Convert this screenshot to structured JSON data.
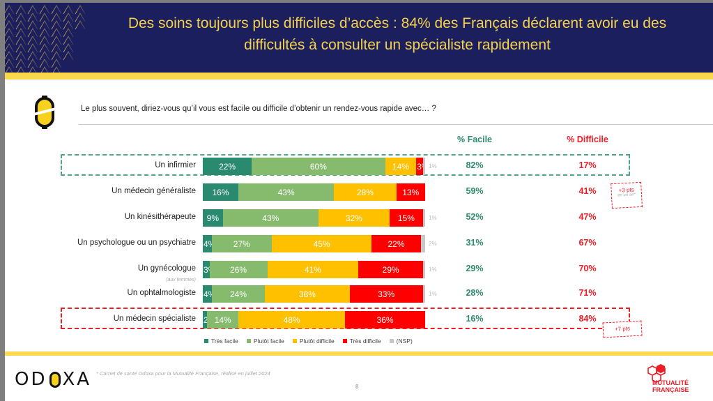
{
  "header": {
    "title_line1": "Des soins toujours plus difficiles d’accès : 84% des Français déclarent avoir eu des",
    "title_line2": "difficultés à consulter un spécialiste rapidement"
  },
  "question": "Le plus souvent, diriez-vous qu’il vous est facile ou difficile d’obtenir un rendez-vous rapide avec… ?",
  "columns": {
    "facile": "% Facile",
    "difficile": "% Difficile"
  },
  "colors": {
    "tres_facile": "#2a8a70",
    "plutot_facile": "#86bb6e",
    "plutot_difficile": "#ffc000",
    "tres_difficile": "#ff0000",
    "nsp": "#c8c8c8",
    "facile_text": "#2e8b6e",
    "difficile_text": "#ee1c25",
    "header_bg": "#1b1f5e",
    "header_text": "#f5d14a",
    "band": "#f9d84e"
  },
  "chart_data": {
    "type": "bar",
    "orientation": "horizontal-stacked-100",
    "title": "Le plus souvent, diriez-vous qu’il vous est facile ou difficile d’obtenir un rendez-vous rapide avec… ?",
    "categories": [
      "Un infirmier",
      "Un médecin généraliste",
      "Un kinésithérapeute",
      "Un psychologue ou un psychiatre",
      "Un gynécologue",
      "Un ophtalmologiste",
      "Un médecin spécialiste"
    ],
    "category_notes": [
      "",
      "",
      "",
      "",
      "(aux femmes)",
      "",
      ""
    ],
    "series": [
      {
        "name": "Très facile",
        "values": [
          22,
          16,
          9,
          4,
          3,
          4,
          2
        ]
      },
      {
        "name": "Plutôt facile",
        "values": [
          60,
          43,
          43,
          27,
          26,
          24,
          14
        ]
      },
      {
        "name": "Plutôt difficile",
        "values": [
          14,
          28,
          32,
          45,
          41,
          38,
          48
        ]
      },
      {
        "name": "Très difficile",
        "values": [
          3,
          13,
          15,
          22,
          29,
          33,
          36
        ]
      },
      {
        "name": "(NSP)",
        "values": [
          1,
          0,
          1,
          2,
          1,
          1,
          0
        ]
      }
    ],
    "nsp_labels": [
      "1%",
      "",
      "1%",
      "2%",
      "1%",
      "1%",
      ""
    ],
    "pct_facile": [
      "82%",
      "59%",
      "52%",
      "31%",
      "29%",
      "28%",
      "16%"
    ],
    "pct_difficile": [
      "17%",
      "41%",
      "47%",
      "67%",
      "70%",
      "71%",
      "84%"
    ],
    "annotations": [
      {
        "row": 1,
        "text": "+3 pts",
        "sub": "en un an*"
      },
      {
        "row": 6,
        "text": "+7 pts",
        "sub": ""
      }
    ],
    "highlighted_rows": [
      {
        "row": 0,
        "color": "green"
      },
      {
        "row": 6,
        "color": "red"
      }
    ],
    "legend": [
      "Très facile",
      "Plutôt facile",
      "Plutôt difficile",
      "Très difficile",
      "(NSP)"
    ],
    "legend_position": "bottom",
    "xlim": [
      0,
      100
    ]
  },
  "footer": {
    "brand": "ODOXA",
    "footnote": "* Carnet de santé Odoxa pour la Mutualité Française, réalisé en juillet 2024",
    "page_number": "8",
    "partner_line1": "MUTUALITÉ",
    "partner_line2": "FRANÇAISE"
  }
}
